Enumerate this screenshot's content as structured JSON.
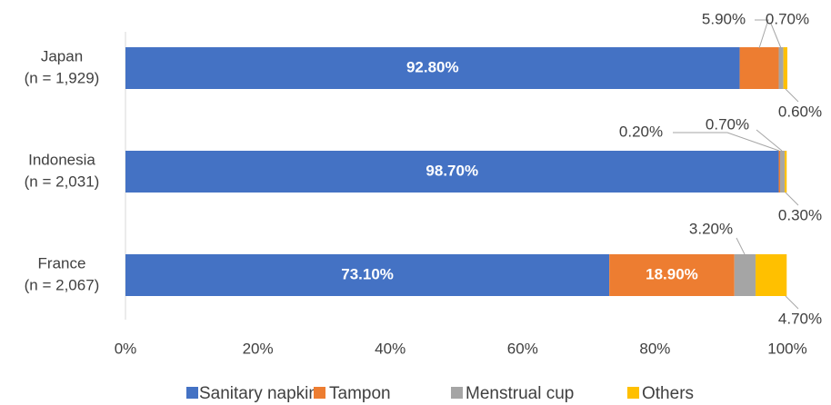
{
  "chart_data": {
    "type": "stacked-bar-horizontal",
    "categories": [
      [
        "Japan",
        "(n = 1,929)"
      ],
      [
        "Indonesia",
        "(n = 2,031)"
      ],
      [
        "France",
        "(n = 2,067)"
      ]
    ],
    "series": [
      {
        "name": "Sanitary napkin",
        "color": "#4472c4",
        "values": [
          92.8,
          98.7,
          73.1
        ],
        "value_labels": [
          "92.80%",
          "98.70%",
          "73.10%"
        ]
      },
      {
        "name": "Tampon",
        "color": "#ed7d31",
        "values": [
          5.9,
          0.2,
          18.9
        ],
        "value_labels": [
          "5.90%",
          "0.20%",
          "18.90%"
        ]
      },
      {
        "name": "Menstrual cup",
        "color": "#a5a5a5",
        "values": [
          0.7,
          0.7,
          3.2
        ],
        "value_labels": [
          "0.70%",
          "0.70%",
          "3.20%"
        ]
      },
      {
        "name": "Others",
        "color": "#ffc000",
        "values": [
          0.6,
          0.3,
          4.7
        ],
        "value_labels": [
          "0.60%",
          "0.30%",
          "4.70%"
        ]
      }
    ],
    "xlim": [
      0,
      100
    ],
    "xticks": [
      {
        "value": 0,
        "label": "0%"
      },
      {
        "value": 20,
        "label": "20%"
      },
      {
        "value": 40,
        "label": "40%"
      },
      {
        "value": 60,
        "label": "60%"
      },
      {
        "value": 80,
        "label": "80%"
      },
      {
        "value": 100,
        "label": "100%"
      }
    ],
    "grid": false,
    "legend": "bottom"
  }
}
